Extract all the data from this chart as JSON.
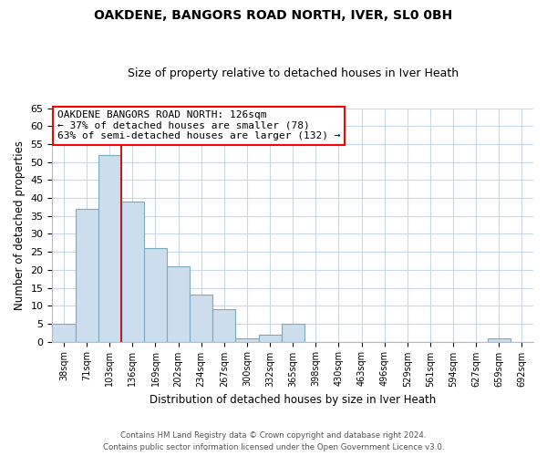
{
  "title": "OAKDENE, BANGORS ROAD NORTH, IVER, SL0 0BH",
  "subtitle": "Size of property relative to detached houses in Iver Heath",
  "xlabel": "Distribution of detached houses by size in Iver Heath",
  "ylabel": "Number of detached properties",
  "bin_labels": [
    "38sqm",
    "71sqm",
    "103sqm",
    "136sqm",
    "169sqm",
    "202sqm",
    "234sqm",
    "267sqm",
    "300sqm",
    "332sqm",
    "365sqm",
    "398sqm",
    "430sqm",
    "463sqm",
    "496sqm",
    "529sqm",
    "561sqm",
    "594sqm",
    "627sqm",
    "659sqm",
    "692sqm"
  ],
  "bar_values": [
    5,
    37,
    52,
    39,
    26,
    21,
    13,
    9,
    1,
    2,
    5,
    0,
    0,
    0,
    0,
    0,
    0,
    0,
    0,
    1,
    0
  ],
  "bar_color": "#ccdded",
  "bar_edgecolor": "#7aaabb",
  "vline_color": "#aa2222",
  "ylim": [
    0,
    65
  ],
  "yticks": [
    0,
    5,
    10,
    15,
    20,
    25,
    30,
    35,
    40,
    45,
    50,
    55,
    60,
    65
  ],
  "annotation_title": "OAKDENE BANGORS ROAD NORTH: 126sqm",
  "annotation_line1": "← 37% of detached houses are smaller (78)",
  "annotation_line2": "63% of semi-detached houses are larger (132) →",
  "footer_line1": "Contains HM Land Registry data © Crown copyright and database right 2024.",
  "footer_line2": "Contains public sector information licensed under the Open Government Licence v3.0.",
  "bg_color": "#ffffff",
  "grid_color": "#c8d8e8"
}
